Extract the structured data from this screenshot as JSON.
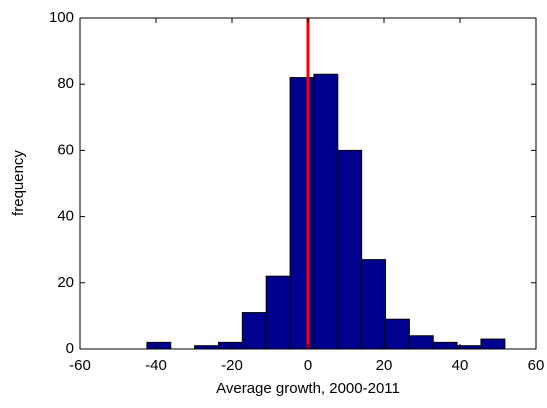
{
  "chart_data": {
    "type": "histogram",
    "xlabel": "Average growth, 2000-2011",
    "ylabel": "frequency",
    "bins": [
      -42.4,
      -36.12,
      -29.84,
      -23.56,
      -17.28,
      -11.0,
      -4.72,
      1.56,
      7.84,
      14.12,
      20.4,
      26.68,
      32.96,
      39.24,
      45.52,
      51.8
    ],
    "values": [
      2,
      0,
      1,
      2,
      11,
      22,
      82,
      83,
      60,
      27,
      9,
      4,
      2,
      1,
      3
    ],
    "color": "#00008f",
    "xlim": [
      -60,
      60
    ],
    "xticks": [
      -60,
      -40,
      -20,
      0,
      20,
      40,
      60
    ],
    "ylim": [
      0,
      100
    ],
    "yticks": [
      0,
      20,
      40,
      60,
      80,
      100
    ],
    "vline": 0,
    "vline_color": "#ff0000",
    "grid": false
  }
}
